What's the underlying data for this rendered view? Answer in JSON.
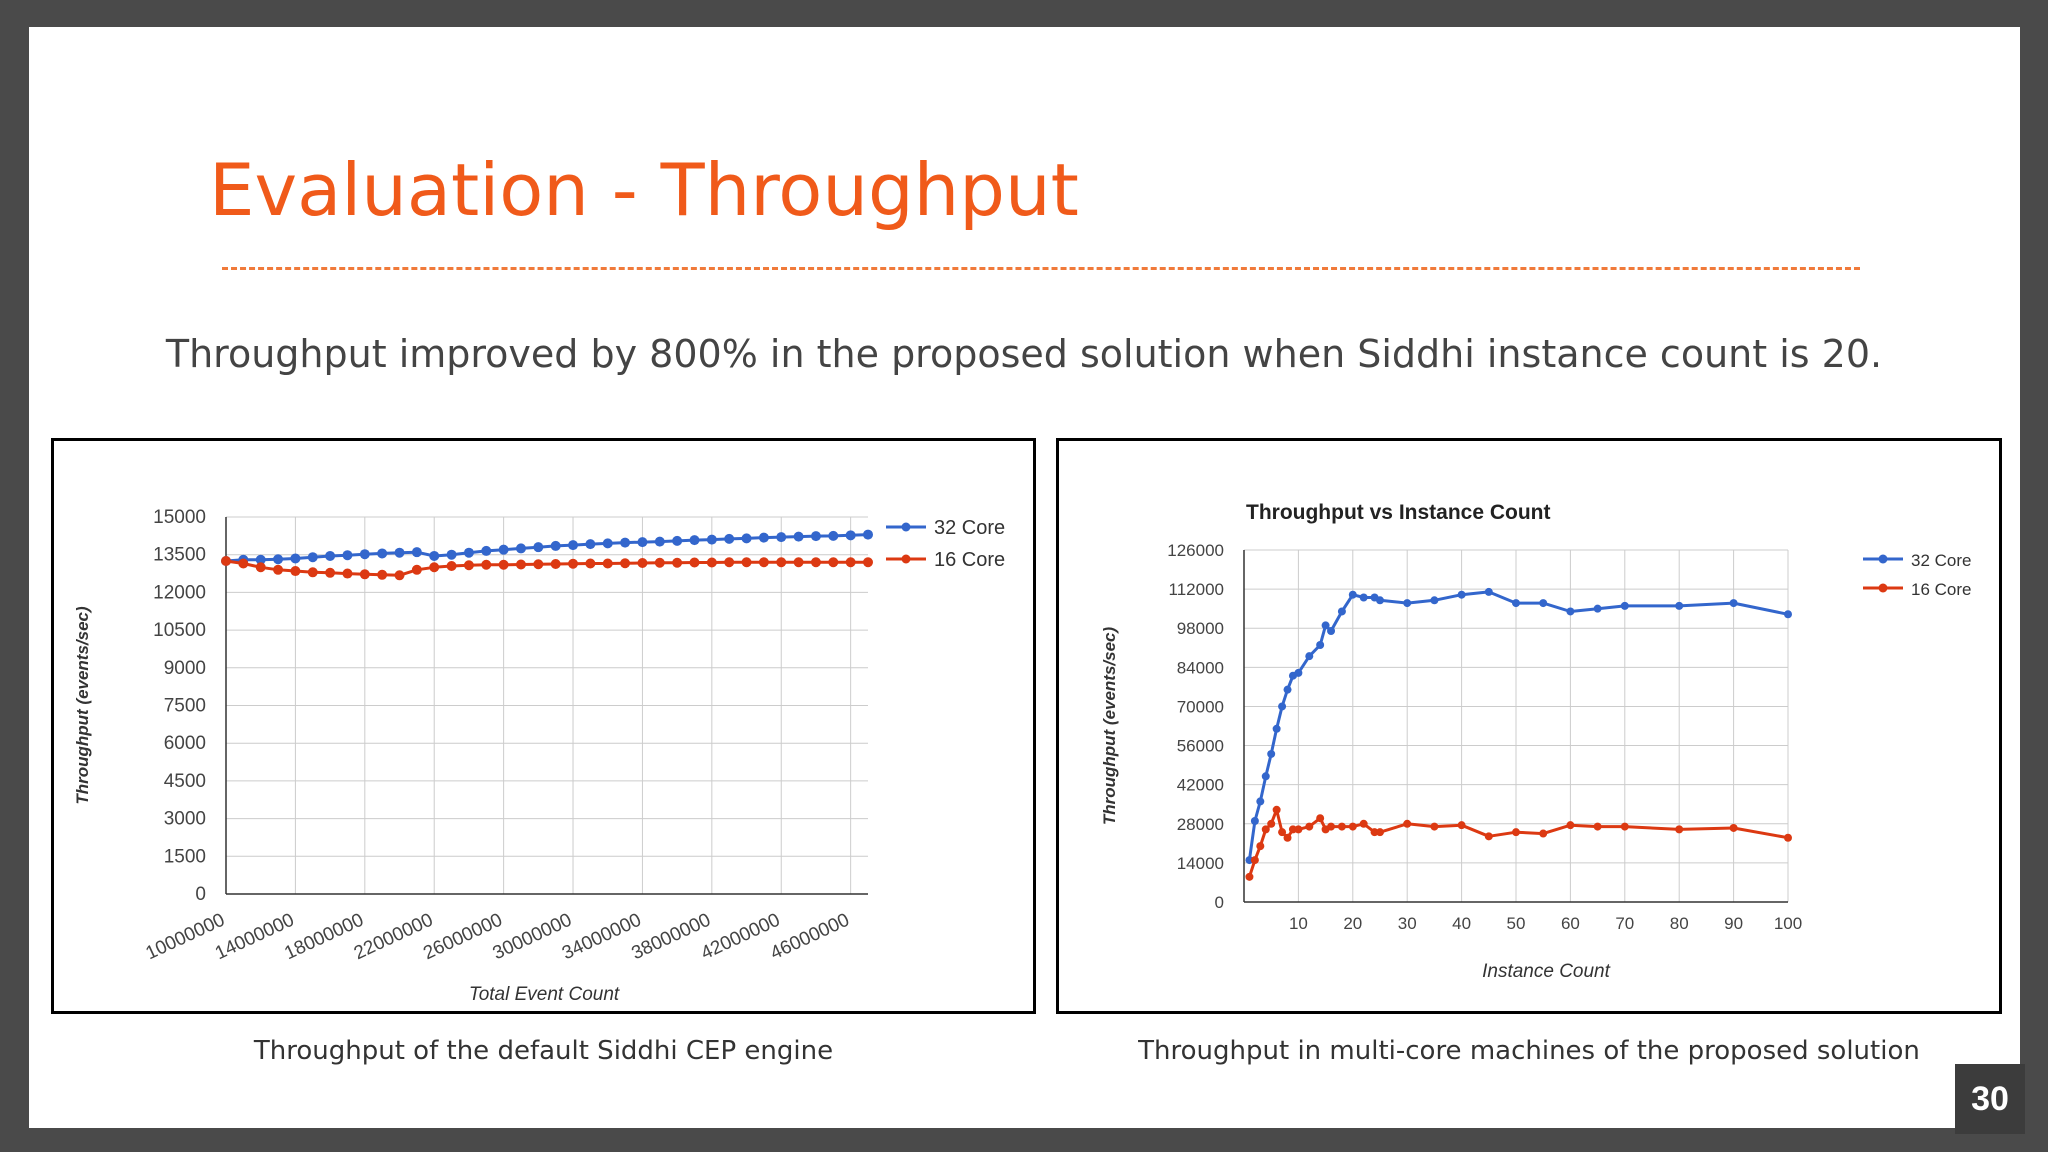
{
  "slide": {
    "title": "Evaluation - Throughput",
    "subtitle": "Throughput improved by 800% in the proposed solution when Siddhi instance count is 20.",
    "page_number": "30",
    "accent_color": "#f05a1a"
  },
  "captions": {
    "left": "Throughput of the default Siddhi CEP engine",
    "right": "Throughput in multi-core machines of the proposed solution"
  },
  "chart_data": [
    {
      "type": "line",
      "title": "",
      "xlabel": "Total Event Count",
      "ylabel": "Throughput (events/sec)",
      "ylim": [
        0,
        15000
      ],
      "yticks": [
        0,
        1500,
        3000,
        4500,
        6000,
        7500,
        9000,
        10500,
        12000,
        13500,
        15000
      ],
      "xlim": [
        10000000,
        47000000
      ],
      "xticks": [
        10000000,
        14000000,
        18000000,
        22000000,
        26000000,
        30000000,
        34000000,
        38000000,
        42000000,
        46000000
      ],
      "grid": true,
      "legend": "right",
      "x": [
        10000000,
        11000000,
        12000000,
        13000000,
        14000000,
        15000000,
        16000000,
        17000000,
        18000000,
        19000000,
        20000000,
        21000000,
        22000000,
        23000000,
        24000000,
        25000000,
        26000000,
        27000000,
        28000000,
        29000000,
        30000000,
        31000000,
        32000000,
        33000000,
        34000000,
        35000000,
        36000000,
        37000000,
        38000000,
        39000000,
        40000000,
        41000000,
        42000000,
        43000000,
        44000000,
        45000000,
        46000000,
        47000000
      ],
      "series": [
        {
          "name": "32 Core",
          "color": "#3366cc",
          "values": [
            13250,
            13300,
            13300,
            13320,
            13350,
            13400,
            13450,
            13480,
            13520,
            13550,
            13580,
            13600,
            13450,
            13500,
            13580,
            13650,
            13700,
            13750,
            13800,
            13850,
            13880,
            13920,
            13950,
            13980,
            14000,
            14020,
            14050,
            14080,
            14100,
            14130,
            14150,
            14180,
            14200,
            14220,
            14240,
            14250,
            14270,
            14300
          ]
        },
        {
          "name": "16 Core",
          "color": "#dc3912",
          "values": [
            13250,
            13150,
            13000,
            12900,
            12850,
            12800,
            12780,
            12750,
            12720,
            12700,
            12680,
            12900,
            13000,
            13050,
            13080,
            13100,
            13100,
            13110,
            13120,
            13130,
            13140,
            13150,
            13150,
            13160,
            13170,
            13180,
            13180,
            13190,
            13190,
            13200,
            13200,
            13200,
            13200,
            13200,
            13200,
            13200,
            13200,
            13200
          ]
        }
      ]
    },
    {
      "type": "line",
      "title": "Throughput vs Instance Count",
      "xlabel": "Instance Count",
      "ylabel": "Throughput (events/sec)",
      "ylim": [
        0,
        126000
      ],
      "yticks": [
        0,
        14000,
        28000,
        42000,
        56000,
        70000,
        84000,
        98000,
        112000,
        126000
      ],
      "xlim": [
        0,
        100
      ],
      "xticks": [
        10,
        20,
        30,
        40,
        50,
        60,
        70,
        80,
        90,
        100
      ],
      "grid": true,
      "legend": "right",
      "x": [
        1,
        2,
        3,
        4,
        5,
        6,
        7,
        8,
        9,
        10,
        12,
        14,
        15,
        16,
        18,
        20,
        22,
        24,
        25,
        30,
        35,
        40,
        45,
        50,
        55,
        60,
        65,
        70,
        80,
        90,
        100
      ],
      "series": [
        {
          "name": "32 Core",
          "color": "#3366cc",
          "values": [
            15000,
            29000,
            36000,
            45000,
            53000,
            62000,
            70000,
            76000,
            81000,
            82000,
            88000,
            92000,
            99000,
            97000,
            104000,
            110000,
            109000,
            109000,
            108000,
            107000,
            108000,
            110000,
            111000,
            107000,
            107000,
            104000,
            105000,
            106000,
            106000,
            107000,
            103000
          ]
        },
        {
          "name": "16 Core",
          "color": "#dc3912",
          "values": [
            9000,
            15000,
            20000,
            26000,
            28000,
            33000,
            25000,
            23000,
            26000,
            26000,
            27000,
            30000,
            26000,
            27000,
            27000,
            27000,
            28000,
            25000,
            25000,
            28000,
            27000,
            27500,
            23500,
            25000,
            24500,
            27500,
            27000,
            27000,
            26000,
            26500,
            23000
          ]
        }
      ]
    }
  ]
}
